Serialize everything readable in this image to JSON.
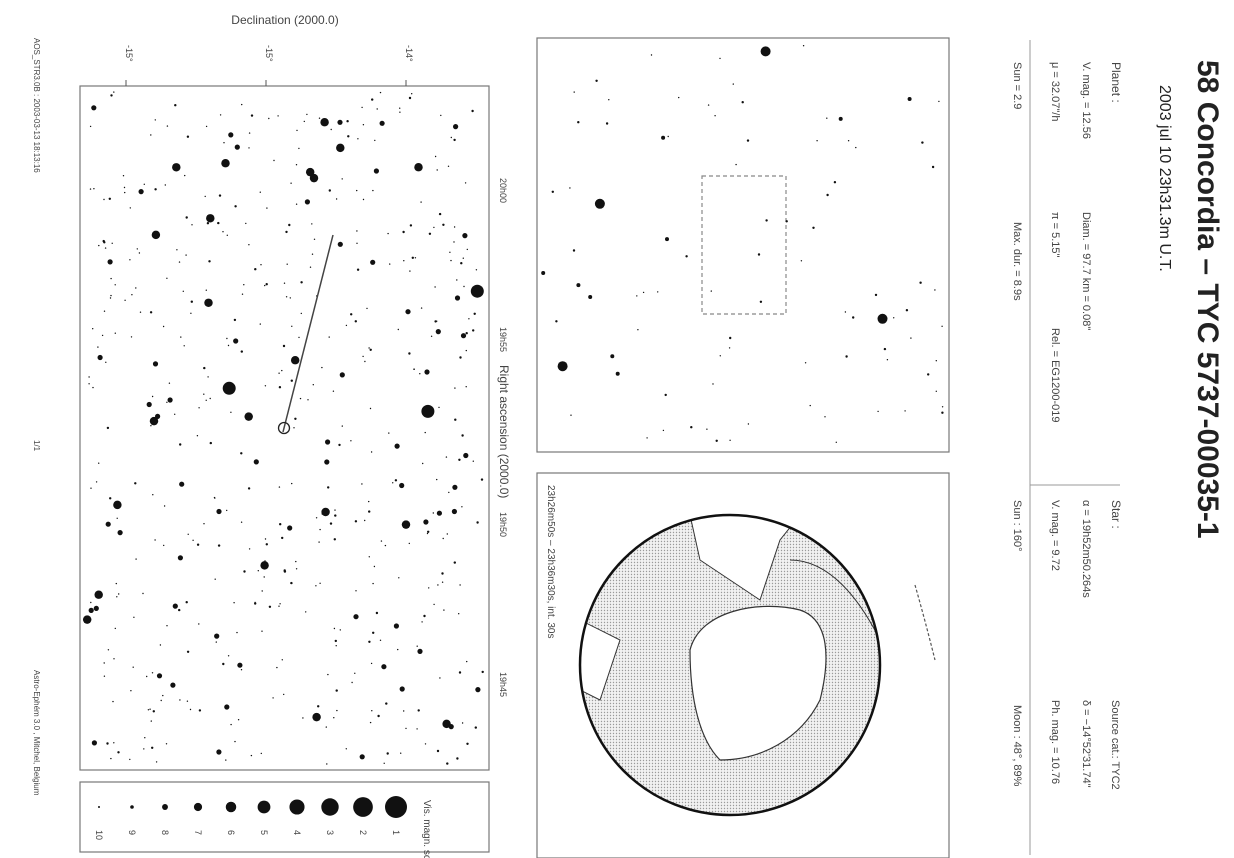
{
  "title": "58 Concordia – TYC 5737-00035-1",
  "date": "2003 jul 10  23h31.3m U.T.",
  "planet": {
    "heading": "Planet :",
    "vmag": "V. mag. = 12.56",
    "diam": "Diam. = 97.7 km = 0.08\"",
    "mu": "μ = 32.07\"/h",
    "pi": "π = 5.15\"",
    "rel": "Rel. = EG1200-019"
  },
  "star": {
    "heading": "Star :",
    "source": "Source cat.: TYC2",
    "alpha": "α = 19h52m50.264s",
    "delta": "δ = −14°52'31.74\"",
    "vmag": "V. mag. = 9.72",
    "phmag": "Ph. mag. = 10.76"
  },
  "circumstances": {
    "sun_alt": "Sun = 2.9",
    "max_dur": "Max. dur. = 8.9s",
    "sun": "Sun : 160°",
    "moon": "Moon : 48°, 89%"
  },
  "globe": {
    "caption": "23h26m50s – 23h36m30s, int. 30s"
  },
  "chart": {
    "dec_label": "Declination (2000.0)",
    "ra_label": "Right ascension (2000.0)",
    "dec_ticks": [
      "-15°",
      "-15°",
      "-14°"
    ],
    "ra_ticks": [
      "20h00",
      "19h55",
      "19h50",
      "19h45"
    ],
    "footer_left": "AOS_STR3.0B  : 2003-03-13  18:13:16",
    "footer_mid": "1/1",
    "footer_right": "Astro-Ephém 3.0 , Mitchel, Belgium"
  },
  "mag_scale": {
    "label": "Vis. magn. scale",
    "values": [
      "1",
      "2",
      "3",
      "4",
      "5",
      "6",
      "7",
      "8",
      "9",
      "10"
    ]
  }
}
